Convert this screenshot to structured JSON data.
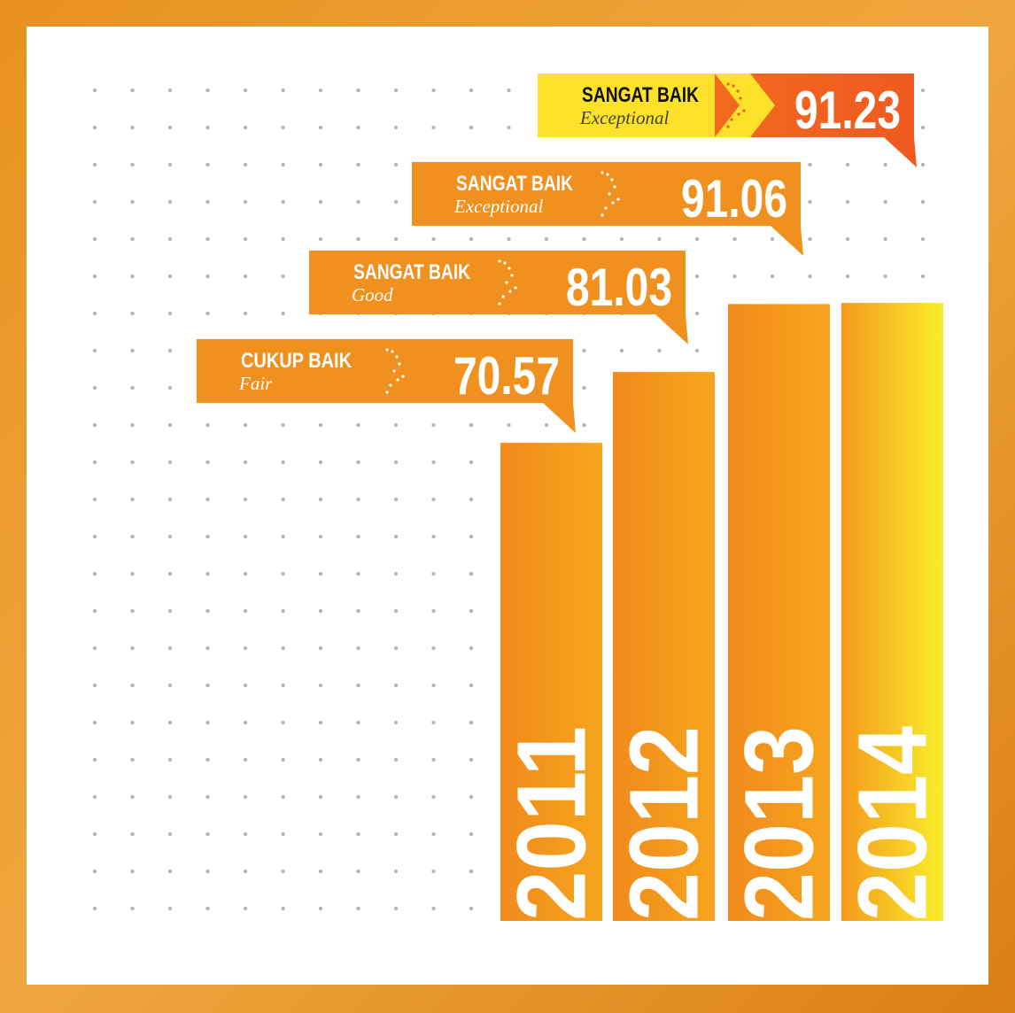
{
  "chart_data": {
    "type": "bar",
    "categories": [
      "2011",
      "2012",
      "2013",
      "2014"
    ],
    "values": [
      70.57,
      81.03,
      91.06,
      91.23
    ],
    "ratings": [
      "CUKUP BAIK",
      "SANGAT BAIK",
      "SANGAT BAIK",
      "SANGAT BAIK"
    ],
    "descriptions": [
      "Fair",
      "Good",
      "Exceptional",
      "Exceptional"
    ],
    "colors": [
      "#f39222",
      "#f39222",
      "#f39222",
      "#f7d51f"
    ],
    "ylim": [
      0,
      100
    ]
  }
}
